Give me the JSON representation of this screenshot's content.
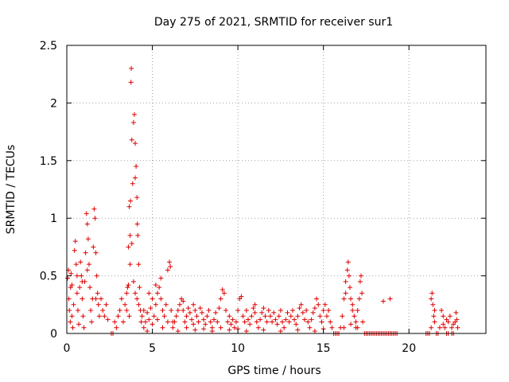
{
  "chart_data": {
    "type": "scatter",
    "title": "Day 275 of 2021, SRMTID for receiver sur1",
    "xlabel": "GPS time / hours",
    "ylabel": "SRMTID / TECUs",
    "xlim": [
      0,
      24.5
    ],
    "ylim": [
      0,
      2.5
    ],
    "xticks": [
      0,
      5,
      10,
      15,
      20
    ],
    "xtick_labels": [
      "0",
      "5",
      "10",
      "15",
      "20"
    ],
    "yticks": [
      0,
      0.5,
      1,
      1.5,
      2,
      2.5
    ],
    "ytick_labels": [
      "0",
      "0.5",
      "1",
      "1.5",
      "2",
      "2.5"
    ],
    "grid": true,
    "marker": "plus",
    "color": "#e00000",
    "series": [
      {
        "name": "SRMTID",
        "points": [
          [
            0.05,
            0.48
          ],
          [
            0.1,
            0.55
          ],
          [
            0.12,
            0.3
          ],
          [
            0.15,
            0.2
          ],
          [
            0.2,
            0.1
          ],
          [
            0.22,
            0.4
          ],
          [
            0.25,
            0.52
          ],
          [
            0.3,
            0.15
          ],
          [
            0.35,
            0.05
          ],
          [
            0.4,
            0.25
          ],
          [
            0.45,
            0.72
          ],
          [
            0.5,
            0.8
          ],
          [
            0.55,
            0.6
          ],
          [
            0.6,
            0.35
          ],
          [
            0.65,
            0.2
          ],
          [
            0.7,
            0.08
          ],
          [
            0.75,
            0.4
          ],
          [
            0.8,
            0.62
          ],
          [
            0.85,
            0.5
          ],
          [
            0.9,
            0.3
          ],
          [
            0.95,
            0.15
          ],
          [
            1.0,
            0.05
          ],
          [
            1.05,
            0.45
          ],
          [
            1.1,
            0.7
          ],
          [
            1.15,
            1.04
          ],
          [
            1.2,
            0.95
          ],
          [
            1.25,
            0.82
          ],
          [
            1.3,
            0.6
          ],
          [
            1.35,
            0.4
          ],
          [
            1.4,
            0.2
          ],
          [
            1.45,
            0.1
          ],
          [
            1.5,
            0.3
          ],
          [
            1.55,
            0.75
          ],
          [
            1.6,
            1.08
          ],
          [
            1.65,
            1.0
          ],
          [
            1.7,
            0.7
          ],
          [
            1.75,
            0.5
          ],
          [
            1.8,
            0.35
          ],
          [
            1.85,
            0.25
          ],
          [
            1.9,
            0.15
          ],
          [
            2.0,
            0.3
          ],
          [
            2.1,
            0.2
          ],
          [
            2.2,
            0.15
          ],
          [
            2.3,
            0.25
          ],
          [
            2.4,
            0.12
          ],
          [
            0.3,
            0.42
          ],
          [
            0.6,
            0.5
          ],
          [
            0.9,
            0.45
          ],
          [
            1.2,
            0.55
          ],
          [
            1.7,
            0.3
          ],
          [
            2.6,
            0.0
          ],
          [
            2.7,
            0.0
          ],
          [
            2.8,
            0.1
          ],
          [
            2.9,
            0.05
          ],
          [
            3.0,
            0.15
          ],
          [
            3.1,
            0.2
          ],
          [
            3.2,
            0.3
          ],
          [
            3.3,
            0.1
          ],
          [
            3.4,
            0.25
          ],
          [
            3.5,
            0.35
          ],
          [
            3.55,
            0.4
          ],
          [
            3.6,
            0.75
          ],
          [
            3.65,
            1.1
          ],
          [
            3.7,
            0.85
          ],
          [
            3.72,
            1.15
          ],
          [
            3.75,
            2.18
          ],
          [
            3.77,
            2.3
          ],
          [
            3.8,
            1.68
          ],
          [
            3.85,
            1.3
          ],
          [
            3.9,
            1.83
          ],
          [
            3.95,
            1.9
          ],
          [
            4.0,
            1.65
          ],
          [
            4.05,
            1.45
          ],
          [
            4.1,
            1.18
          ],
          [
            4.12,
            0.95
          ],
          [
            4.15,
            0.85
          ],
          [
            4.2,
            0.6
          ],
          [
            4.25,
            0.4
          ],
          [
            4.3,
            0.2
          ],
          [
            4.35,
            0.1
          ],
          [
            3.6,
            0.42
          ],
          [
            3.7,
            0.6
          ],
          [
            3.8,
            0.78
          ],
          [
            3.9,
            0.45
          ],
          [
            4.0,
            0.35
          ],
          [
            4.1,
            0.3
          ],
          [
            4.2,
            0.25
          ],
          [
            3.5,
            0.2
          ],
          [
            3.65,
            0.15
          ],
          [
            4.0,
            1.35
          ],
          [
            4.4,
            0.15
          ],
          [
            4.5,
            0.2
          ],
          [
            4.6,
            0.1
          ],
          [
            4.7,
            0.18
          ],
          [
            4.8,
            0.12
          ],
          [
            4.9,
            0.22
          ],
          [
            5.0,
            0.3
          ],
          [
            5.1,
            0.15
          ],
          [
            5.2,
            0.25
          ],
          [
            5.3,
            0.35
          ],
          [
            5.4,
            0.4
          ],
          [
            5.5,
            0.3
          ],
          [
            5.6,
            0.2
          ],
          [
            5.7,
            0.15
          ],
          [
            5.8,
            0.25
          ],
          [
            5.9,
            0.55
          ],
          [
            6.0,
            0.62
          ],
          [
            6.05,
            0.58
          ],
          [
            6.1,
            0.2
          ],
          [
            6.2,
            0.1
          ],
          [
            4.5,
            0.05
          ],
          [
            4.7,
            0.02
          ],
          [
            5.0,
            0.08
          ],
          [
            5.3,
            0.12
          ],
          [
            5.6,
            0.05
          ],
          [
            5.9,
            0.1
          ],
          [
            6.2,
            0.05
          ],
          [
            4.8,
            0.35
          ],
          [
            5.2,
            0.42
          ],
          [
            5.5,
            0.48
          ],
          [
            6.3,
            0.1
          ],
          [
            6.4,
            0.15
          ],
          [
            6.5,
            0.2
          ],
          [
            6.6,
            0.25
          ],
          [
            6.7,
            0.3
          ],
          [
            6.8,
            0.2
          ],
          [
            6.9,
            0.1
          ],
          [
            7.0,
            0.15
          ],
          [
            7.1,
            0.22
          ],
          [
            7.2,
            0.18
          ],
          [
            7.3,
            0.12
          ],
          [
            7.4,
            0.08
          ],
          [
            7.5,
            0.2
          ],
          [
            7.6,
            0.15
          ],
          [
            7.7,
            0.1
          ],
          [
            7.8,
            0.22
          ],
          [
            7.9,
            0.18
          ],
          [
            8.0,
            0.12
          ],
          [
            8.1,
            0.08
          ],
          [
            8.2,
            0.15
          ],
          [
            8.3,
            0.2
          ],
          [
            8.4,
            0.1
          ],
          [
            8.5,
            0.05
          ],
          [
            8.6,
            0.12
          ],
          [
            8.7,
            0.18
          ],
          [
            8.8,
            0.1
          ],
          [
            8.9,
            0.22
          ],
          [
            9.0,
            0.3
          ],
          [
            9.1,
            0.38
          ],
          [
            9.2,
            0.35
          ],
          [
            9.3,
            0.2
          ],
          [
            9.4,
            0.1
          ],
          [
            9.5,
            0.15
          ],
          [
            9.6,
            0.08
          ],
          [
            9.7,
            0.12
          ],
          [
            9.8,
            0.05
          ],
          [
            9.9,
            0.1
          ],
          [
            10.0,
            0.2
          ],
          [
            10.1,
            0.3
          ],
          [
            10.2,
            0.32
          ],
          [
            6.5,
            0.02
          ],
          [
            7.0,
            0.05
          ],
          [
            7.5,
            0.03
          ],
          [
            8.0,
            0.04
          ],
          [
            8.5,
            0.02
          ],
          [
            9.0,
            0.05
          ],
          [
            9.5,
            0.03
          ],
          [
            10.0,
            0.04
          ],
          [
            6.8,
            0.28
          ],
          [
            7.4,
            0.25
          ],
          [
            10.3,
            0.15
          ],
          [
            10.4,
            0.1
          ],
          [
            10.5,
            0.2
          ],
          [
            10.6,
            0.12
          ],
          [
            10.7,
            0.08
          ],
          [
            10.8,
            0.15
          ],
          [
            10.9,
            0.22
          ],
          [
            11.0,
            0.18
          ],
          [
            11.1,
            0.1
          ],
          [
            11.2,
            0.05
          ],
          [
            11.3,
            0.12
          ],
          [
            11.4,
            0.18
          ],
          [
            11.5,
            0.22
          ],
          [
            11.6,
            0.15
          ],
          [
            11.7,
            0.1
          ],
          [
            11.8,
            0.2
          ],
          [
            11.9,
            0.15
          ],
          [
            12.0,
            0.1
          ],
          [
            12.1,
            0.18
          ],
          [
            12.2,
            0.12
          ],
          [
            12.3,
            0.08
          ],
          [
            12.4,
            0.15
          ],
          [
            12.5,
            0.2
          ],
          [
            12.6,
            0.1
          ],
          [
            12.7,
            0.05
          ],
          [
            12.8,
            0.12
          ],
          [
            12.9,
            0.18
          ],
          [
            13.0,
            0.1
          ],
          [
            13.1,
            0.15
          ],
          [
            13.2,
            0.2
          ],
          [
            13.3,
            0.12
          ],
          [
            13.4,
            0.08
          ],
          [
            13.5,
            0.15
          ],
          [
            13.6,
            0.22
          ],
          [
            13.7,
            0.25
          ],
          [
            13.8,
            0.18
          ],
          [
            13.9,
            0.12
          ],
          [
            14.0,
            0.2
          ],
          [
            14.1,
            0.1
          ],
          [
            14.2,
            0.05
          ],
          [
            14.3,
            0.12
          ],
          [
            14.4,
            0.18
          ],
          [
            14.5,
            0.22
          ],
          [
            14.6,
            0.3
          ],
          [
            14.7,
            0.25
          ],
          [
            14.8,
            0.15
          ],
          [
            14.9,
            0.1
          ],
          [
            15.0,
            0.2
          ],
          [
            15.1,
            0.25
          ],
          [
            15.2,
            0.15
          ],
          [
            15.3,
            0.2
          ],
          [
            15.4,
            0.1
          ],
          [
            15.5,
            0.05
          ],
          [
            10.5,
            0.02
          ],
          [
            11.5,
            0.03
          ],
          [
            12.5,
            0.02
          ],
          [
            13.5,
            0.03
          ],
          [
            14.5,
            0.02
          ],
          [
            15.0,
            0.04
          ],
          [
            11.0,
            0.25
          ],
          [
            15.6,
            0.0
          ],
          [
            15.7,
            0.0
          ],
          [
            15.8,
            0.0
          ],
          [
            15.9,
            0.0
          ],
          [
            16.0,
            0.05
          ],
          [
            16.1,
            0.15
          ],
          [
            16.2,
            0.3
          ],
          [
            16.3,
            0.45
          ],
          [
            16.4,
            0.55
          ],
          [
            16.45,
            0.62
          ],
          [
            16.5,
            0.5
          ],
          [
            16.55,
            0.4
          ],
          [
            16.6,
            0.3
          ],
          [
            16.7,
            0.2
          ],
          [
            16.8,
            0.15
          ],
          [
            16.9,
            0.1
          ],
          [
            17.0,
            0.2
          ],
          [
            17.1,
            0.3
          ],
          [
            17.15,
            0.45
          ],
          [
            17.2,
            0.5
          ],
          [
            17.25,
            0.35
          ],
          [
            17.3,
            0.1
          ],
          [
            17.4,
            0.0
          ],
          [
            17.5,
            0.0
          ],
          [
            17.6,
            0.0
          ],
          [
            17.7,
            0.0
          ],
          [
            17.8,
            0.0
          ],
          [
            17.9,
            0.0
          ],
          [
            18.0,
            0.0
          ],
          [
            18.1,
            0.0
          ],
          [
            18.2,
            0.0
          ],
          [
            18.3,
            0.0
          ],
          [
            18.4,
            0.0
          ],
          [
            18.5,
            0.0
          ],
          [
            18.6,
            0.0
          ],
          [
            18.7,
            0.0
          ],
          [
            18.8,
            0.0
          ],
          [
            18.9,
            0.0
          ],
          [
            19.0,
            0.0
          ],
          [
            19.1,
            0.0
          ],
          [
            19.2,
            0.0
          ],
          [
            19.3,
            0.0
          ],
          [
            18.5,
            0.28
          ],
          [
            18.9,
            0.3
          ],
          [
            16.2,
            0.05
          ],
          [
            16.6,
            0.08
          ],
          [
            16.9,
            0.05
          ],
          [
            16.3,
            0.35
          ],
          [
            16.7,
            0.25
          ],
          [
            17.0,
            0.05
          ],
          [
            21.0,
            0.0
          ],
          [
            21.1,
            0.0
          ],
          [
            21.2,
            0.0
          ],
          [
            21.3,
            0.3
          ],
          [
            21.35,
            0.35
          ],
          [
            21.4,
            0.25
          ],
          [
            21.45,
            0.15
          ],
          [
            21.5,
            0.1
          ],
          [
            21.6,
            0.0
          ],
          [
            21.7,
            0.0
          ],
          [
            21.8,
            0.05
          ],
          [
            21.9,
            0.2
          ],
          [
            22.0,
            0.15
          ],
          [
            22.1,
            0.05
          ],
          [
            22.2,
            0.0
          ],
          [
            22.3,
            0.1
          ],
          [
            22.4,
            0.15
          ],
          [
            22.5,
            0.05
          ],
          [
            22.6,
            0.0
          ],
          [
            22.7,
            0.1
          ],
          [
            22.75,
            0.18
          ],
          [
            22.8,
            0.12
          ],
          [
            22.85,
            0.05
          ],
          [
            22.3,
            0.0
          ],
          [
            22.5,
            0.0
          ],
          [
            21.5,
            0.2
          ],
          [
            22.0,
            0.08
          ],
          [
            22.6,
            0.08
          ],
          [
            21.3,
            0.05
          ],
          [
            22.2,
            0.12
          ]
        ]
      }
    ]
  }
}
